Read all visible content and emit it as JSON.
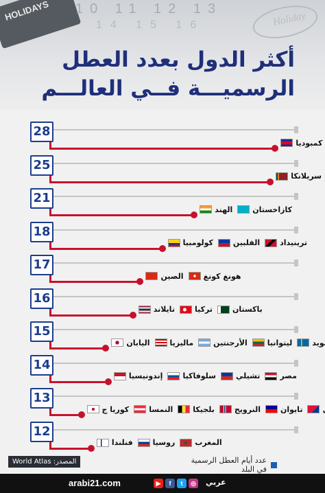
{
  "header": {
    "title_line1": "أكثر الدول بعدد العطل",
    "title_line2": "الرسميـــة فــي العالـــم",
    "deco_calendar": "HOLIDAYS",
    "deco_numbers": "10 11 12 13",
    "deco_numbers2": "14 15 16",
    "deco_holiday": "Holiday"
  },
  "chart_data": {
    "type": "bar",
    "title": "أكثر الدول بعدد العطل الرسميـــة فــي العالـــم",
    "xlabel": "",
    "ylabel": "",
    "categories": [
      "كمبوديا",
      "سريلانكا",
      "الهند، كازاخستان",
      "كولومبيا، الفلبين، ترينيداد",
      "الصين، هونغ كونغ",
      "تايلاند، تركيا، باكستان",
      "اليابان، ماليزيا، الأرجنتين، ليتوانيا، السويد",
      "إندونيسيا، سلوفاكيا، تشيلي، مصر",
      "كوريا ج، النمسا، بلجيكا، النرويج، تايوان، نيبال",
      "فنلندا، روسيا، المغرب"
    ],
    "values": [
      28,
      25,
      21,
      18,
      17,
      16,
      15,
      14,
      13,
      12
    ],
    "rows": [
      {
        "value": "28",
        "line_ratio": 0.92,
        "countries": [
          {
            "name": "كمبوديا",
            "flag": "cambodia-flag"
          }
        ]
      },
      {
        "value": "25",
        "line_ratio": 0.9,
        "countries": [
          {
            "name": "سريلانكا",
            "flag": "srilanka-flag"
          }
        ]
      },
      {
        "value": "21",
        "line_ratio": 0.59,
        "countries": [
          {
            "name": "الهند",
            "flag": "india-flag"
          },
          {
            "name": "كازاخستان",
            "flag": "kazakhstan-flag"
          }
        ]
      },
      {
        "value": "18",
        "line_ratio": 0.46,
        "countries": [
          {
            "name": "كولومبيا",
            "flag": "colombia-flag"
          },
          {
            "name": "الفلبين",
            "flag": "philippines-flag"
          },
          {
            "name": "ترينيداد",
            "flag": "trinidad-flag"
          }
        ]
      },
      {
        "value": "17",
        "line_ratio": 0.37,
        "countries": [
          {
            "name": "الصين",
            "flag": "china-flag"
          },
          {
            "name": "هونغ كونغ",
            "flag": "hongkong-flag"
          }
        ]
      },
      {
        "value": "16",
        "line_ratio": 0.34,
        "countries": [
          {
            "name": "تايلاند",
            "flag": "thailand-flag"
          },
          {
            "name": "تركيا",
            "flag": "turkey-flag"
          },
          {
            "name": "باكستان",
            "flag": "pakistan-flag"
          }
        ]
      },
      {
        "value": "15",
        "line_ratio": 0.23,
        "countries": [
          {
            "name": "اليابان",
            "flag": "japan-flag"
          },
          {
            "name": "ماليزيا",
            "flag": "malaysia-flag"
          },
          {
            "name": "الأرجنتين",
            "flag": "argentina-flag"
          },
          {
            "name": "ليتوانيا",
            "flag": "lithuania-flag"
          },
          {
            "name": "السويد",
            "flag": "sweden-flag"
          }
        ]
      },
      {
        "value": "14",
        "line_ratio": 0.24,
        "countries": [
          {
            "name": "إندونيسيا",
            "flag": "indonesia-flag"
          },
          {
            "name": "سلوفاكيا",
            "flag": "slovakia-flag"
          },
          {
            "name": "تشيلي",
            "flag": "chile-flag"
          },
          {
            "name": "مصر",
            "flag": "egypt-flag"
          }
        ]
      },
      {
        "value": "13",
        "line_ratio": 0.13,
        "countries": [
          {
            "name": "كوريا ج",
            "flag": "southkorea-flag"
          },
          {
            "name": "النمسا",
            "flag": "austria-flag"
          },
          {
            "name": "بلجيكا",
            "flag": "belgium-flag"
          },
          {
            "name": "النرويج",
            "flag": "norway-flag"
          },
          {
            "name": "تايوان",
            "flag": "taiwan-flag"
          },
          {
            "name": "نيبال",
            "flag": "nepal-flag"
          }
        ]
      },
      {
        "value": "12",
        "line_ratio": 0.17,
        "countries": [
          {
            "name": "فنلندا",
            "flag": "finland-flag"
          },
          {
            "name": "روسيا",
            "flag": "russia-flag"
          },
          {
            "name": "المغرب",
            "flag": "morocco-flag"
          }
        ]
      }
    ],
    "colors": {
      "badge_border": "#1b3c8f",
      "line": "#c8102e",
      "track": "#c5c5c5",
      "title": "#1f2f7a"
    }
  },
  "flags": {
    "cambodia-flag": "linear-gradient(180deg,#032ea1 0 25%,#e00025 25% 75%,#032ea1 75%)",
    "srilanka-flag": "linear-gradient(90deg,#00534e 0 12%,#eb7400 12% 24%,#8d2029 24%)",
    "india-flag": "linear-gradient(180deg,#ff9933 0 33%,#ffffff 33% 66%,#138808 66%)",
    "kazakhstan-flag": "linear-gradient(180deg,#00afca 0 100%)",
    "colombia-flag": "linear-gradient(180deg,#fcd116 0 50%,#003893 50% 75%,#ce1126 75%)",
    "philippines-flag": "linear-gradient(180deg,#0038a8 0 50%,#ce1126 50%)",
    "trinidad-flag": "linear-gradient(135deg,#ce1126 0 40%,#000 40% 60%,#ce1126 60%)",
    "china-flag": "linear-gradient(180deg,#de2910 0 100%)",
    "hongkong-flag": "radial-gradient(circle,#ffffff 0 18%,#de2910 20%)",
    "thailand-flag": "linear-gradient(180deg,#a51931 0 16%,#f4f5f8 16% 33%,#2d2a4a 33% 66%,#f4f5f8 66% 83%,#a51931 83%)",
    "turkey-flag": "radial-gradient(circle at 40% 50%,#ffffff 0 22%,#e30a17 24%)",
    "pakistan-flag": "linear-gradient(90deg,#ffffff 0 25%,#01411c 25%)",
    "japan-flag": "radial-gradient(circle,#bc002d 0 28%,#ffffff 30%)",
    "malaysia-flag": "repeating-linear-gradient(180deg,#cc0001 0 2px,#ffffff 2px 4px)",
    "argentina-flag": "linear-gradient(180deg,#74acdf 0 33%,#ffffff 33% 66%,#74acdf 66%)",
    "lithuania-flag": "linear-gradient(180deg,#fdb913 0 33%,#006a44 33% 66%,#c1272d 66%)",
    "sweden-flag": "linear-gradient(90deg,#006aa7 0 30%,#fecc00 30% 42%,#006aa7 42%)",
    "indonesia-flag": "linear-gradient(180deg,#ce1126 0 50%,#ffffff 50%)",
    "slovakia-flag": "linear-gradient(180deg,#ffffff 0 33%,#0b4ea2 33% 66%,#ee1c25 66%)",
    "chile-flag": "linear-gradient(180deg,#0039a6 0 50%,#d52b1e 50%)",
    "egypt-flag": "linear-gradient(180deg,#ce1126 0 33%,#ffffff 33% 66%,#000000 66%)",
    "southkorea-flag": "radial-gradient(circle,#c60c30 0 22%,#ffffff 24%)",
    "austria-flag": "linear-gradient(180deg,#ed2939 0 33%,#ffffff 33% 66%,#ed2939 66%)",
    "belgium-flag": "linear-gradient(90deg,#000000 0 33%,#fae042 33% 66%,#ed2939 66%)",
    "norway-flag": "linear-gradient(90deg,#ba0c2f 0 30%,#ffffff 30% 36%,#00205b 36% 46%,#ffffff 46% 52%,#ba0c2f 52%)",
    "taiwan-flag": "linear-gradient(180deg,#000095 0 50%,#fe0000 50%)",
    "nepal-flag": "linear-gradient(135deg,#dc143c 0 60%,#003893 60%)",
    "finland-flag": "linear-gradient(90deg,#ffffff 0 30%,#003580 30% 42%,#ffffff 42%)",
    "russia-flag": "linear-gradient(180deg,#ffffff 0 33%,#0039a6 33% 66%,#d52b1e 66%)",
    "morocco-flag": "radial-gradient(circle,#006233 0 18%,#c1272d 20%)"
  },
  "footer": {
    "source": "المصدر: World Atlas",
    "legend": "عدد أيام العطل الرسمية في البلد",
    "site": "arabi21.com",
    "brand": "عربي"
  }
}
